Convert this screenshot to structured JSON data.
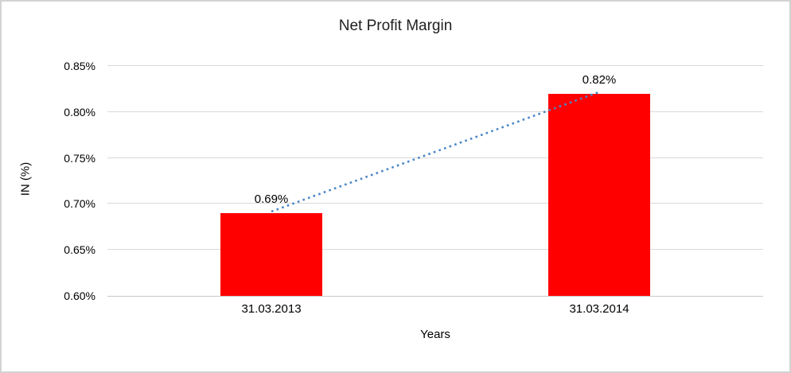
{
  "chart_data": {
    "type": "bar",
    "title": "Net Profit Margin",
    "categories": [
      "31.03.2013",
      "31.03.2014"
    ],
    "values": [
      0.69,
      0.82
    ],
    "value_labels": [
      "0.69%",
      "0.82%"
    ],
    "xlabel": "Years",
    "ylabel": "IN (%)",
    "ylim": [
      0.6,
      0.85
    ],
    "ytick_step": 0.05,
    "ytick_labels": [
      "0.60%",
      "0.65%",
      "0.70%",
      "0.75%",
      "0.80%",
      "0.85%"
    ],
    "bar_color": "#ff0000",
    "gridline_color": "#d9d9d9",
    "axis_line_color": "#c6c6c6",
    "trendline": {
      "style": "dotted",
      "color": "#4a86c8"
    },
    "legend_position": "none",
    "grid": true
  },
  "window": {
    "background_color": "#ffffff",
    "border_color": "#d2d2d2"
  }
}
